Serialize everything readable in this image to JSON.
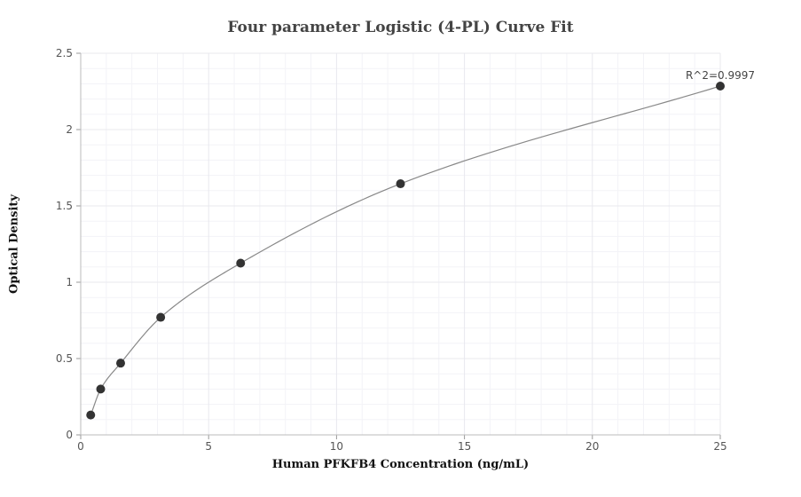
{
  "chart_data": {
    "type": "scatter",
    "title": "Four parameter Logistic (4-PL) Curve Fit",
    "xlabel": "Human PFKFB4 Concentration (ng/mL)",
    "ylabel": "Optical Density",
    "xlim": [
      0,
      25
    ],
    "ylim": [
      0,
      2.5
    ],
    "xticks": [
      "0",
      "5",
      "10",
      "15",
      "20",
      "25"
    ],
    "yticks": [
      "0",
      "0.5",
      "1",
      "1.5",
      "2",
      "2.5"
    ],
    "grid": true,
    "points": [
      {
        "x": 0.39,
        "y": 0.13
      },
      {
        "x": 0.78,
        "y": 0.3
      },
      {
        "x": 1.56,
        "y": 0.47
      },
      {
        "x": 3.125,
        "y": 0.77
      },
      {
        "x": 6.25,
        "y": 1.125
      },
      {
        "x": 12.5,
        "y": 1.645
      },
      {
        "x": 25,
        "y": 2.285
      }
    ],
    "annotation": "R^2=0.9997",
    "marker_color": "#333333",
    "curve_color": "#888888",
    "grid_color": "#e8e8ee"
  }
}
